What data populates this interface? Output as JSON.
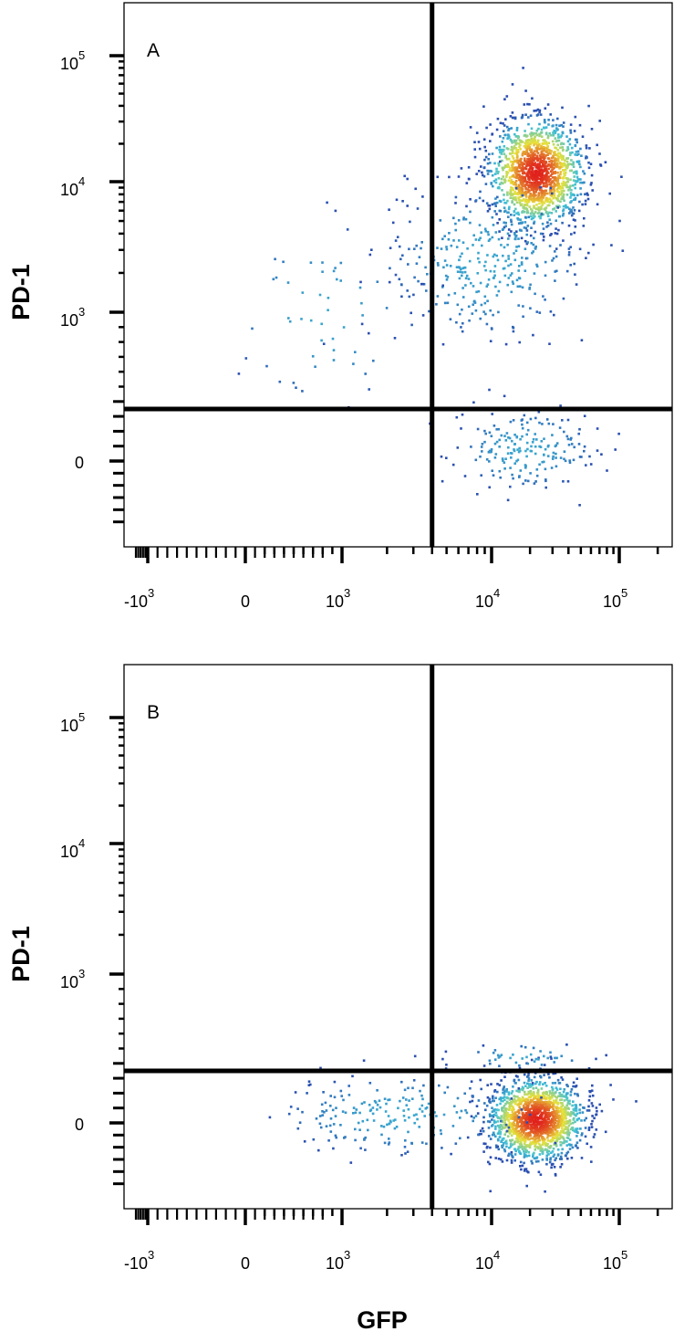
{
  "chart_data": [
    {
      "type": "scatter",
      "panel_label": "A",
      "xlabel": "",
      "ylabel": "PD-1",
      "x_scale": "biexponential",
      "y_scale": "biexponential",
      "x_ticks": [
        {
          "value": -1000,
          "base": "-10",
          "exp": "3"
        },
        {
          "value": 0,
          "base": "0",
          "exp": ""
        },
        {
          "value": 1000,
          "base": "10",
          "exp": "3"
        },
        {
          "value": 10000,
          "base": "10",
          "exp": "4"
        },
        {
          "value": 100000,
          "base": "10",
          "exp": "5"
        }
      ],
      "y_ticks": [
        {
          "value": 0,
          "base": "0",
          "exp": ""
        },
        {
          "value": 1000,
          "base": "10",
          "exp": "3"
        },
        {
          "value": 10000,
          "base": "10",
          "exp": "4"
        },
        {
          "value": 100000,
          "base": "10",
          "exp": "5"
        }
      ],
      "gate": {
        "x": 4000,
        "y": 350
      },
      "populations": [
        {
          "name": "main",
          "center": [
            22000,
            12000
          ],
          "spread_decades": [
            0.17,
            0.2
          ],
          "count": 1500
        },
        {
          "name": "diagonal tail",
          "center": [
            9000,
            2500
          ],
          "spread_decades": [
            0.35,
            0.3
          ],
          "count": 350
        },
        {
          "name": "low PD-1",
          "center": [
            18000,
            80
          ],
          "spread_decades": [
            0.25,
            0.0
          ],
          "count": 200
        },
        {
          "name": "GFP negative",
          "center": [
            800,
            1000
          ],
          "spread_decades": [
            0.35,
            0.35
          ],
          "count": 60
        }
      ]
    },
    {
      "type": "scatter",
      "panel_label": "B",
      "xlabel": "GFP",
      "ylabel": "PD-1",
      "x_scale": "biexponential",
      "y_scale": "biexponential",
      "x_ticks": [
        {
          "value": -1000,
          "base": "-10",
          "exp": "3"
        },
        {
          "value": 0,
          "base": "0",
          "exp": ""
        },
        {
          "value": 1000,
          "base": "10",
          "exp": "3"
        },
        {
          "value": 10000,
          "base": "10",
          "exp": "4"
        },
        {
          "value": 100000,
          "base": "10",
          "exp": "5"
        }
      ],
      "y_ticks": [
        {
          "value": 0,
          "base": "0",
          "exp": ""
        },
        {
          "value": 1000,
          "base": "10",
          "exp": "3"
        },
        {
          "value": 10000,
          "base": "10",
          "exp": "4"
        },
        {
          "value": 100000,
          "base": "10",
          "exp": "5"
        }
      ],
      "gate": {
        "x": 4000,
        "y": 350
      },
      "populations": [
        {
          "name": "main",
          "center": [
            22000,
            30
          ],
          "spread_decades": [
            0.17,
            0.0
          ],
          "count": 1600
        },
        {
          "name": "left tail",
          "center": [
            2500,
            60
          ],
          "spread_decades": [
            0.45,
            0.0
          ],
          "count": 220
        },
        {
          "name": "above gate",
          "center": [
            18000,
            450
          ],
          "spread_decades": [
            0.25,
            0.05
          ],
          "count": 40
        }
      ]
    }
  ],
  "colors": {
    "density_low": "#2b4fb0",
    "density_mid": "#3fc1d8",
    "density_high_mid": "#e8e23a",
    "density_peak": "#e0201c",
    "gate_line": "#000000"
  }
}
